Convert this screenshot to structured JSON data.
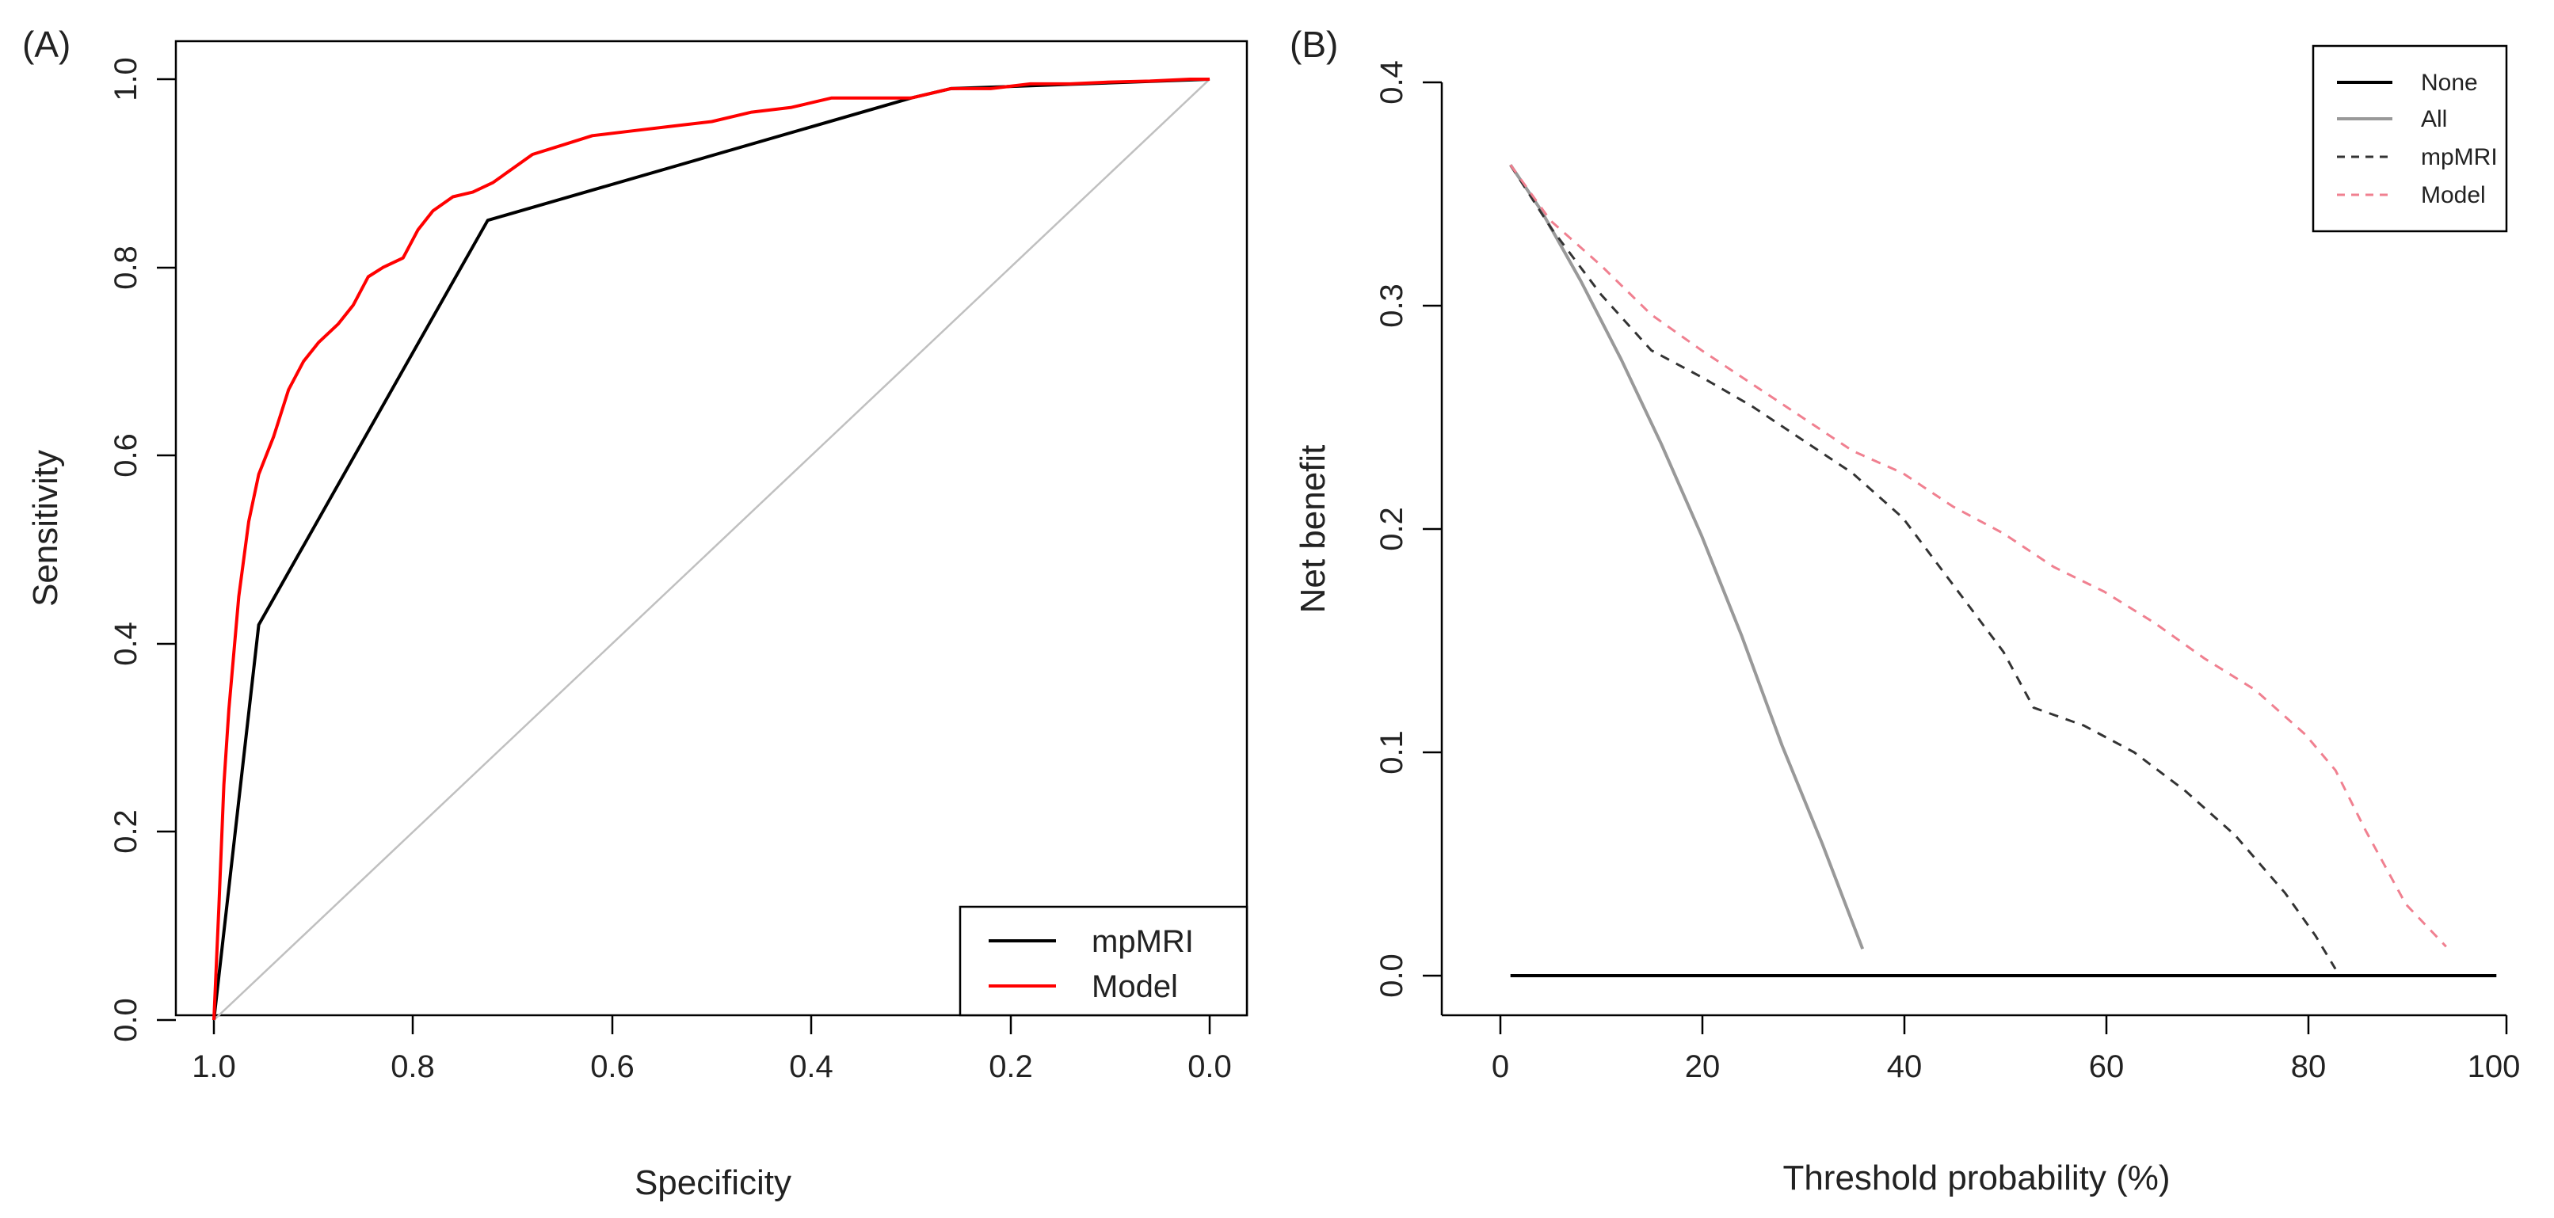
{
  "chart_data": [
    {
      "panel_label": "(A)",
      "type": "line",
      "subtype": "roc",
      "xlabel": "Specificity",
      "ylabel": "Sensitivity",
      "xlim": [
        1.0,
        0.0
      ],
      "ylim": [
        0.0,
        1.0
      ],
      "x_ticks": [
        "1.0",
        "0.8",
        "0.6",
        "0.4",
        "0.2",
        "0.0"
      ],
      "y_ticks": [
        "0.0",
        "0.2",
        "0.4",
        "0.6",
        "0.8",
        "1.0"
      ],
      "grid": false,
      "legend_position": "bottom-right",
      "reference_line": {
        "name": "chance",
        "color": "#c0c0c0",
        "x": [
          1.0,
          0.0
        ],
        "y": [
          0.0,
          1.0
        ]
      },
      "series": [
        {
          "name": "mpMRI",
          "color": "#000000",
          "dash": "solid",
          "x": [
            1.0,
            0.955,
            0.725,
            0.3,
            0.26,
            0.0
          ],
          "y": [
            0.0,
            0.42,
            0.85,
            0.98,
            0.99,
            1.0
          ]
        },
        {
          "name": "Model",
          "color": "#ff0000",
          "dash": "solid",
          "x": [
            1.0,
            0.995,
            0.99,
            0.985,
            0.975,
            0.965,
            0.955,
            0.94,
            0.925,
            0.91,
            0.895,
            0.875,
            0.86,
            0.845,
            0.83,
            0.81,
            0.795,
            0.78,
            0.76,
            0.74,
            0.72,
            0.7,
            0.68,
            0.65,
            0.62,
            0.58,
            0.54,
            0.5,
            0.46,
            0.42,
            0.38,
            0.34,
            0.3,
            0.26,
            0.22,
            0.18,
            0.14,
            0.1,
            0.06,
            0.02,
            0.0
          ],
          "y": [
            0.0,
            0.12,
            0.25,
            0.33,
            0.45,
            0.53,
            0.58,
            0.62,
            0.67,
            0.7,
            0.72,
            0.74,
            0.76,
            0.79,
            0.8,
            0.81,
            0.84,
            0.86,
            0.875,
            0.88,
            0.89,
            0.905,
            0.92,
            0.93,
            0.94,
            0.945,
            0.95,
            0.955,
            0.965,
            0.97,
            0.98,
            0.98,
            0.98,
            0.99,
            0.99,
            0.995,
            0.995,
            0.997,
            0.998,
            1.0,
            1.0
          ]
        }
      ]
    },
    {
      "panel_label": "(B)",
      "type": "line",
      "subtype": "decision_curve",
      "xlabel": "Threshold probability (%)",
      "ylabel": "Net benefit",
      "xlim": [
        -1,
        101
      ],
      "ylim": [
        -0.018,
        0.4
      ],
      "x_ticks": [
        "0",
        "20",
        "40",
        "60",
        "80",
        "100"
      ],
      "y_ticks": [
        "0.0",
        "0.1",
        "0.2",
        "0.3",
        "0.4"
      ],
      "grid": false,
      "legend_position": "top-right",
      "series": [
        {
          "name": "None",
          "color": "#000000",
          "dash": "solid",
          "x": [
            1,
            99
          ],
          "y": [
            0.0,
            0.0
          ]
        },
        {
          "name": "All",
          "color": "#999999",
          "dash": "solid",
          "x": [
            1,
            4,
            8,
            12,
            16,
            20,
            24,
            28,
            32,
            36
          ],
          "y": [
            0.363,
            0.343,
            0.311,
            0.276,
            0.238,
            0.197,
            0.152,
            0.103,
            0.059,
            0.012
          ]
        },
        {
          "name": "mpMRI",
          "color": "#333333",
          "dash": "dashed",
          "x": [
            1,
            5,
            10,
            15,
            20,
            25,
            30,
            35,
            40,
            45,
            50,
            53,
            58,
            63,
            68,
            73,
            78,
            81,
            83
          ],
          "y": [
            0.363,
            0.335,
            0.305,
            0.28,
            0.268,
            0.255,
            0.24,
            0.225,
            0.205,
            0.175,
            0.145,
            0.12,
            0.112,
            0.1,
            0.083,
            0.063,
            0.037,
            0.018,
            0.003
          ]
        },
        {
          "name": "Model",
          "color": "#f08090",
          "dash": "dashed",
          "x": [
            1,
            5,
            10,
            15,
            20,
            25,
            30,
            35,
            40,
            45,
            50,
            55,
            60,
            65,
            70,
            75,
            80,
            83,
            86,
            90,
            94
          ],
          "y": [
            0.363,
            0.338,
            0.318,
            0.296,
            0.28,
            0.265,
            0.25,
            0.235,
            0.225,
            0.21,
            0.198,
            0.183,
            0.172,
            0.158,
            0.142,
            0.128,
            0.108,
            0.092,
            0.065,
            0.032,
            0.013
          ]
        }
      ]
    }
  ]
}
